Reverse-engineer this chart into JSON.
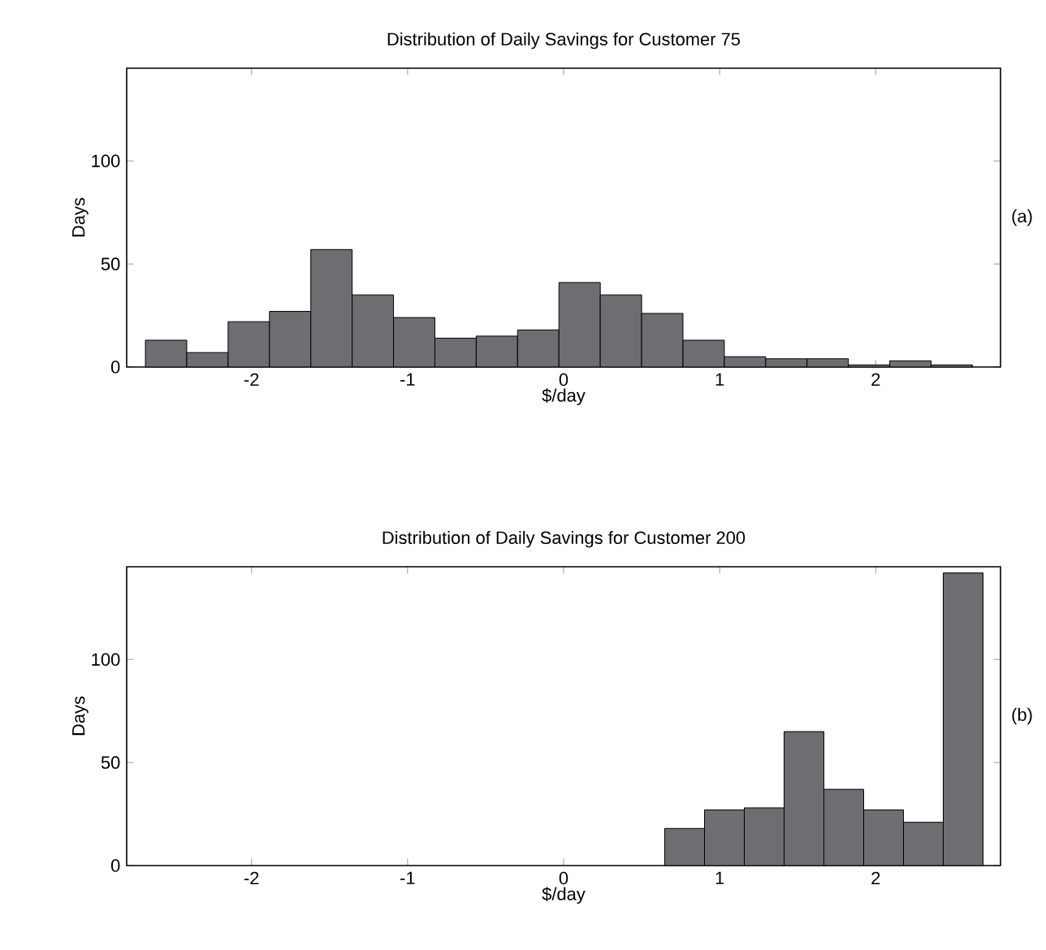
{
  "chart_data": [
    {
      "type": "histogram",
      "title": "Distribution of Daily Savings for Customer 75",
      "xlabel": "$/day",
      "ylabel": "Days",
      "annotations": [
        "(a)"
      ],
      "color": "#6d6e71",
      "bins": [
        -2.68,
        -2.415,
        -2.15,
        -1.885,
        -1.62,
        -1.355,
        -1.09,
        -0.825,
        -0.56,
        -0.295,
        -0.03,
        0.235,
        0.5,
        0.765,
        1.03,
        1.295,
        1.56,
        1.825,
        2.09,
        2.355,
        2.62
      ],
      "values": [
        13,
        7,
        22,
        27,
        57,
        35,
        24,
        14,
        15,
        18,
        41,
        35,
        26,
        13,
        5,
        4,
        4,
        1,
        3,
        1
      ],
      "xlim": [
        -2.8,
        2.8
      ],
      "ylim": [
        0,
        145
      ],
      "xticks": [
        -2,
        -1,
        0,
        1,
        2
      ],
      "yticks": [
        0,
        50,
        100
      ]
    },
    {
      "type": "histogram",
      "title": "Distribution of Daily Savings for Customer 200",
      "xlabel": "$/day",
      "ylabel": "Days",
      "annotations": [
        "(b)"
      ],
      "color": "#6d6e71",
      "bins": [
        0.648,
        0.903,
        1.158,
        1.413,
        1.668,
        1.923,
        2.178,
        2.433,
        2.688
      ],
      "values": [
        18,
        27,
        28,
        65,
        37,
        27,
        21,
        142
      ],
      "xlim": [
        -2.8,
        2.8
      ],
      "ylim": [
        0,
        145
      ],
      "xticks": [
        -2,
        -1,
        0,
        1,
        2
      ],
      "yticks": [
        0,
        50,
        100
      ]
    }
  ]
}
